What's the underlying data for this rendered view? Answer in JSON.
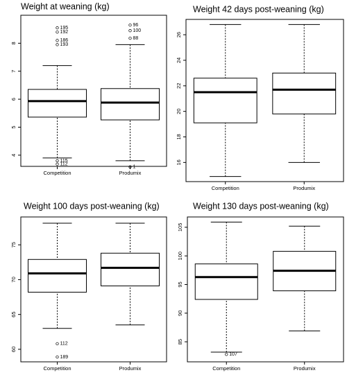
{
  "chart_data": [
    {
      "type": "box",
      "title": "Weight at weaning (kg)",
      "categories": [
        "Competition",
        "Produmix"
      ],
      "ylim": [
        3.6,
        9.0
      ],
      "yticks": [
        4,
        5,
        6,
        7,
        8
      ],
      "boxes": [
        {
          "whisker_low": 3.9,
          "q1": 5.36,
          "median": 5.93,
          "q3": 6.35,
          "whisker_high": 7.2,
          "outliers": [
            {
              "value": 8.55,
              "label": "195"
            },
            {
              "value": 8.4,
              "label": "192"
            },
            {
              "value": 8.1,
              "label": "186"
            },
            {
              "value": 7.95,
              "label": "193"
            },
            {
              "value": 3.8,
              "label": "115"
            },
            {
              "value": 3.68,
              "label": "112"
            }
          ]
        },
        {
          "whisker_low": 3.8,
          "q1": 5.26,
          "median": 5.88,
          "q3": 6.38,
          "whisker_high": 7.95,
          "outliers": [
            {
              "value": 8.65,
              "label": "96"
            },
            {
              "value": 8.45,
              "label": "100"
            },
            {
              "value": 8.18,
              "label": "88"
            },
            {
              "value": 3.58,
              "label": "1"
            }
          ]
        }
      ]
    },
    {
      "type": "box",
      "title": "Weight 42 days post-weaning (kg)",
      "categories": [
        "Competition",
        "Produmix"
      ],
      "ylim": [
        14.5,
        27.2
      ],
      "yticks": [
        16,
        18,
        20,
        22,
        24,
        26
      ],
      "boxes": [
        {
          "whisker_low": 14.9,
          "q1": 19.1,
          "median": 21.5,
          "q3": 22.6,
          "whisker_high": 26.8,
          "outliers": []
        },
        {
          "whisker_low": 16.0,
          "q1": 19.8,
          "median": 21.7,
          "q3": 23.0,
          "whisker_high": 26.8,
          "outliers": []
        }
      ]
    },
    {
      "type": "box",
      "title": "Weight 100 days post-weaning (kg)",
      "categories": [
        "Competition",
        "Produmix"
      ],
      "ylim": [
        58.2,
        79.0
      ],
      "yticks": [
        60,
        65,
        70,
        75
      ],
      "boxes": [
        {
          "whisker_low": 63.0,
          "q1": 68.2,
          "median": 70.9,
          "q3": 72.9,
          "whisker_high": 78.1,
          "outliers": [
            {
              "value": 60.8,
              "label": "112"
            },
            {
              "value": 58.9,
              "label": "189"
            }
          ]
        },
        {
          "whisker_low": 63.5,
          "q1": 69.1,
          "median": 71.7,
          "q3": 73.8,
          "whisker_high": 78.1,
          "outliers": []
        }
      ]
    },
    {
      "type": "box",
      "title": "Weight 130 days post-weaning (kg)",
      "categories": [
        "Competition",
        "Produmix"
      ],
      "ylim": [
        81.5,
        106.8
      ],
      "yticks": [
        85,
        90,
        95,
        100,
        105
      ],
      "boxes": [
        {
          "whisker_low": 83.2,
          "q1": 92.4,
          "median": 96.3,
          "q3": 98.6,
          "whisker_high": 105.9,
          "outliers": [
            {
              "value": 82.8,
              "label": "107"
            }
          ]
        },
        {
          "whisker_low": 86.9,
          "q1": 93.9,
          "median": 97.4,
          "q3": 100.8,
          "whisker_high": 105.2,
          "outliers": []
        }
      ]
    }
  ]
}
